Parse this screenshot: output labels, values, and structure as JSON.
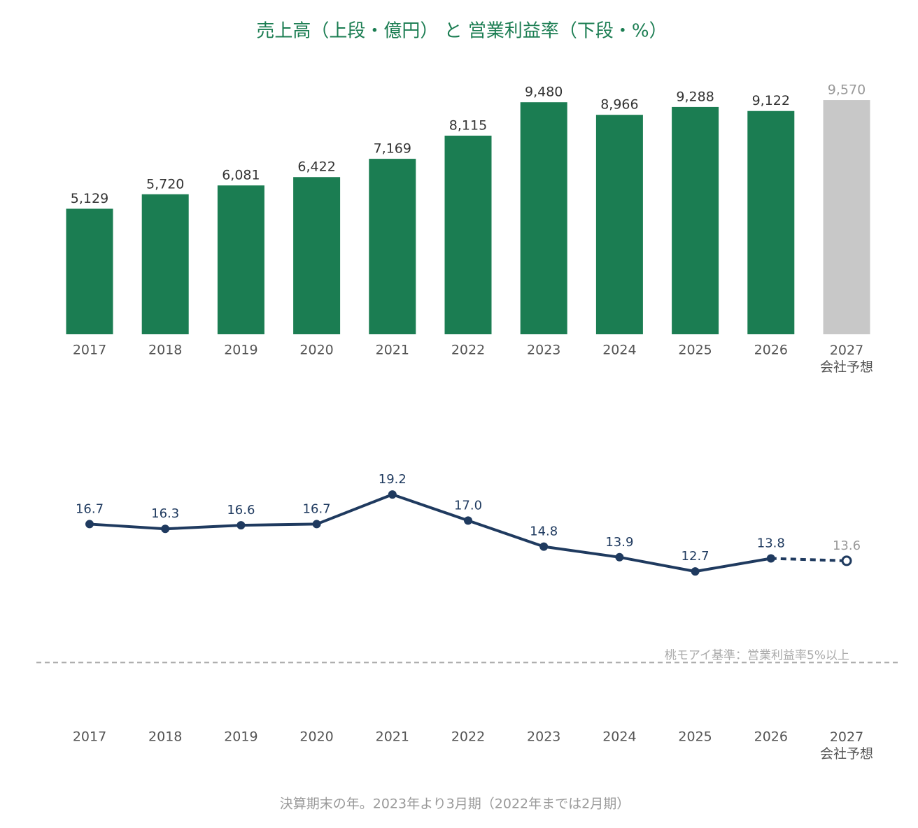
{
  "title": "売上高（上段・億円） と 営業利益率（下段・%）",
  "chart_data": [
    {
      "type": "bar",
      "categories": [
        "2017",
        "2018",
        "2019",
        "2020",
        "2021",
        "2022",
        "2023",
        "2024",
        "2025",
        "2026",
        "2027\n会社予想"
      ],
      "values": [
        5129,
        5720,
        6081,
        6422,
        7169,
        8115,
        9480,
        8966,
        9288,
        9122,
        9570
      ],
      "value_labels": [
        "5,129",
        "5,720",
        "6,081",
        "6,422",
        "7,169",
        "8,115",
        "9,480",
        "8,966",
        "9,288",
        "9,122",
        "9,570"
      ],
      "colors": [
        "#1b7d52",
        "#1b7d52",
        "#1b7d52",
        "#1b7d52",
        "#1b7d52",
        "#1b7d52",
        "#1b7d52",
        "#1b7d52",
        "#1b7d52",
        "#1b7d52",
        "#c8c8c8"
      ],
      "label_colors": [
        "#333333",
        "#333333",
        "#333333",
        "#333333",
        "#333333",
        "#333333",
        "#333333",
        "#333333",
        "#333333",
        "#333333",
        "#999999"
      ],
      "ylim": [
        0,
        10000
      ]
    },
    {
      "type": "line",
      "categories": [
        "2017",
        "2018",
        "2019",
        "2020",
        "2021",
        "2022",
        "2023",
        "2024",
        "2025",
        "2026",
        "2027\n会社予想"
      ],
      "values": [
        16.7,
        16.3,
        16.6,
        16.7,
        19.2,
        17.0,
        14.8,
        13.9,
        12.7,
        13.8,
        13.6
      ],
      "value_labels": [
        "16.7",
        "16.3",
        "16.6",
        "16.7",
        "19.2",
        "17.0",
        "14.8",
        "13.9",
        "12.7",
        "13.8",
        "13.6"
      ],
      "color": "#1f3a5f",
      "point_styles": [
        "filled",
        "filled",
        "filled",
        "filled",
        "filled",
        "filled",
        "filled",
        "filled",
        "filled",
        "filled",
        "open"
      ],
      "label_colors": [
        "#1f3a5f",
        "#1f3a5f",
        "#1f3a5f",
        "#1f3a5f",
        "#1f3a5f",
        "#1f3a5f",
        "#1f3a5f",
        "#1f3a5f",
        "#1f3a5f",
        "#1f3a5f",
        "#999999"
      ],
      "ylim": [
        0,
        25
      ],
      "reference": {
        "value": 5,
        "label": "桃モアイ基準：営業利益率5%以上",
        "color": "#aaaaaa"
      }
    }
  ],
  "footnote": "決算期末の年。2023年より3月期（2022年までは2月期）"
}
